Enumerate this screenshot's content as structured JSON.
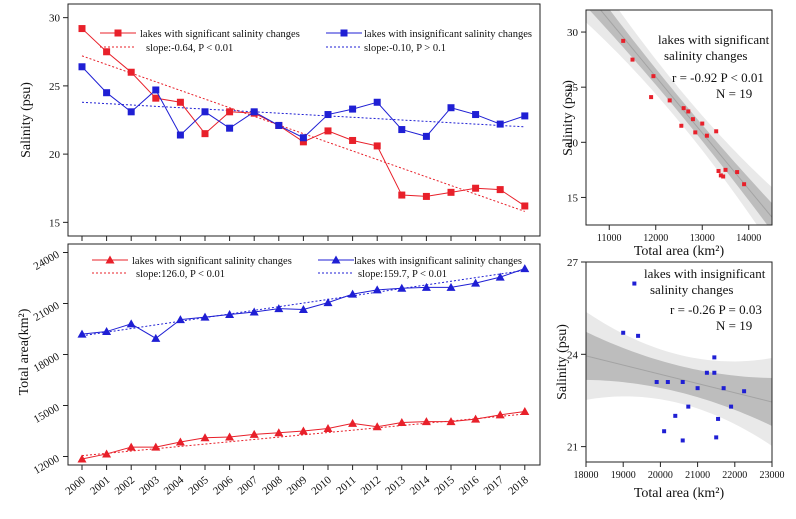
{
  "chart_data": [
    {
      "id": "A",
      "type": "line",
      "title": "",
      "xlabel": "",
      "ylabel": "Salinity (psu)",
      "categories": [
        "2000",
        "2001",
        "2002",
        "2003",
        "2004",
        "2005",
        "2006",
        "2007",
        "2008",
        "2009",
        "2010",
        "2011",
        "2012",
        "2013",
        "2014",
        "2015",
        "2016",
        "2017",
        "2018"
      ],
      "ylim": [
        14,
        31
      ],
      "yticks": [
        15,
        20,
        25,
        30
      ],
      "series": [
        {
          "name": "lakes with significant salinity changes",
          "color": "#e8202a",
          "marker": "square",
          "values": [
            29.2,
            27.5,
            26.0,
            24.1,
            23.8,
            21.5,
            23.1,
            23.0,
            22.1,
            20.9,
            21.7,
            21.0,
            20.6,
            17.0,
            16.9,
            17.2,
            17.5,
            17.4,
            16.2
          ]
        },
        {
          "name": "lakes with insignificant salinity changes",
          "color": "#1f1fd4",
          "marker": "square",
          "values": [
            26.4,
            24.5,
            23.1,
            24.7,
            21.4,
            23.1,
            21.9,
            23.1,
            22.1,
            21.2,
            22.9,
            23.3,
            23.8,
            21.8,
            21.3,
            23.4,
            22.9,
            22.2,
            22.8
          ]
        }
      ],
      "fits": [
        {
          "label": "slope:-0.64,  P < 0.01",
          "color": "#e8202a",
          "start": 27.2,
          "end": 15.8
        },
        {
          "label": "slope:-0.10,  P > 0.1",
          "color": "#1f1fd4",
          "start": 23.8,
          "end": 22.0
        }
      ]
    },
    {
      "id": "B",
      "type": "line",
      "title": "",
      "xlabel": "",
      "ylabel": "Total area(km²)",
      "categories": [
        "2000",
        "2001",
        "2002",
        "2003",
        "2004",
        "2005",
        "2006",
        "2007",
        "2008",
        "2009",
        "2010",
        "2011",
        "2012",
        "2013",
        "2014",
        "2015",
        "2016",
        "2017",
        "2018"
      ],
      "ylim": [
        11500,
        24500
      ],
      "yticks": [
        12000,
        15000,
        18000,
        21000,
        24000
      ],
      "series": [
        {
          "name": "lakes with significant salinity changes",
          "color": "#e8202a",
          "marker": "triangle",
          "values": [
            11850,
            12150,
            12550,
            12550,
            12850,
            13100,
            13150,
            13300,
            13400,
            13500,
            13650,
            13950,
            13750,
            14000,
            14050,
            14050,
            14200,
            14450,
            14650
          ]
        },
        {
          "name": "lakes with insignificant salinity changes",
          "color": "#1f1fd4",
          "marker": "triangle",
          "values": [
            19200,
            19350,
            19800,
            18950,
            20050,
            20200,
            20350,
            20500,
            20700,
            20650,
            21050,
            21550,
            21800,
            21900,
            21950,
            21950,
            22200,
            22550,
            23050
          ]
        }
      ],
      "fits": [
        {
          "label": "slope:126.0,  P < 0.01",
          "color": "#e8202a",
          "start": 12050,
          "end": 14500
        },
        {
          "label": "slope:159.7,  P < 0.01",
          "color": "#1f1fd4",
          "start": 19100,
          "end": 22950
        }
      ]
    },
    {
      "id": "C",
      "type": "scatter",
      "title": "lakes with significant salinity changes",
      "stats": [
        "r = -0.92 P < 0.01",
        "N = 19"
      ],
      "xlabel": "Total area (km²)",
      "ylabel": "Salinity (psu)",
      "xlim": [
        10500,
        14500
      ],
      "ylim": [
        12.5,
        32
      ],
      "xticks": [
        11000,
        12000,
        13000,
        14000
      ],
      "yticks": [
        15,
        20,
        25,
        30
      ],
      "color": "#e8202a",
      "points": [
        {
          "x": 11300,
          "y": 29.2
        },
        {
          "x": 11500,
          "y": 27.5
        },
        {
          "x": 11950,
          "y": 26.0
        },
        {
          "x": 11900,
          "y": 24.1
        },
        {
          "x": 12300,
          "y": 23.8
        },
        {
          "x": 12600,
          "y": 23.1
        },
        {
          "x": 12700,
          "y": 22.8
        },
        {
          "x": 12550,
          "y": 21.5
        },
        {
          "x": 12800,
          "y": 22.1
        },
        {
          "x": 13000,
          "y": 21.7
        },
        {
          "x": 12850,
          "y": 20.9
        },
        {
          "x": 13100,
          "y": 20.6
        },
        {
          "x": 13300,
          "y": 21.0
        },
        {
          "x": 13350,
          "y": 17.4
        },
        {
          "x": 13400,
          "y": 17.0
        },
        {
          "x": 13500,
          "y": 17.5
        },
        {
          "x": 13750,
          "y": 17.3
        },
        {
          "x": 13900,
          "y": 16.2
        },
        {
          "x": 13450,
          "y": 16.9
        }
      ],
      "fit": {
        "x0": 10500,
        "y0": 33.6,
        "x1": 14500,
        "y1": 13.2
      }
    },
    {
      "id": "D",
      "type": "scatter",
      "title": "lakes with insignificant salinity changes",
      "stats": [
        "r = -0.26  P = 0.03",
        "N = 19"
      ],
      "xlabel": "Total area (km²)",
      "ylabel": "Salinity (psu)",
      "xlim": [
        18000,
        23000
      ],
      "ylim": [
        20.5,
        27
      ],
      "xticks": [
        18000,
        19000,
        20000,
        21000,
        22000,
        23000
      ],
      "yticks": [
        21,
        24,
        27
      ],
      "color": "#1f1fd4",
      "points": [
        {
          "x": 19000,
          "y": 24.7
        },
        {
          "x": 19300,
          "y": 26.3
        },
        {
          "x": 19400,
          "y": 24.6
        },
        {
          "x": 19900,
          "y": 23.1
        },
        {
          "x": 20200,
          "y": 23.1
        },
        {
          "x": 20600,
          "y": 23.1
        },
        {
          "x": 20400,
          "y": 22.0
        },
        {
          "x": 20600,
          "y": 21.2
        },
        {
          "x": 20750,
          "y": 22.3
        },
        {
          "x": 21000,
          "y": 22.9
        },
        {
          "x": 21250,
          "y": 23.4
        },
        {
          "x": 21450,
          "y": 23.4
        },
        {
          "x": 21450,
          "y": 23.9
        },
        {
          "x": 21550,
          "y": 21.9
        },
        {
          "x": 21700,
          "y": 22.9
        },
        {
          "x": 21900,
          "y": 22.3
        },
        {
          "x": 22250,
          "y": 22.8
        },
        {
          "x": 21500,
          "y": 21.3
        },
        {
          "x": 20100,
          "y": 21.5
        }
      ],
      "fit": {
        "x0": 18000,
        "y0": 23.95,
        "x1": 23000,
        "y1": 22.45
      }
    }
  ]
}
